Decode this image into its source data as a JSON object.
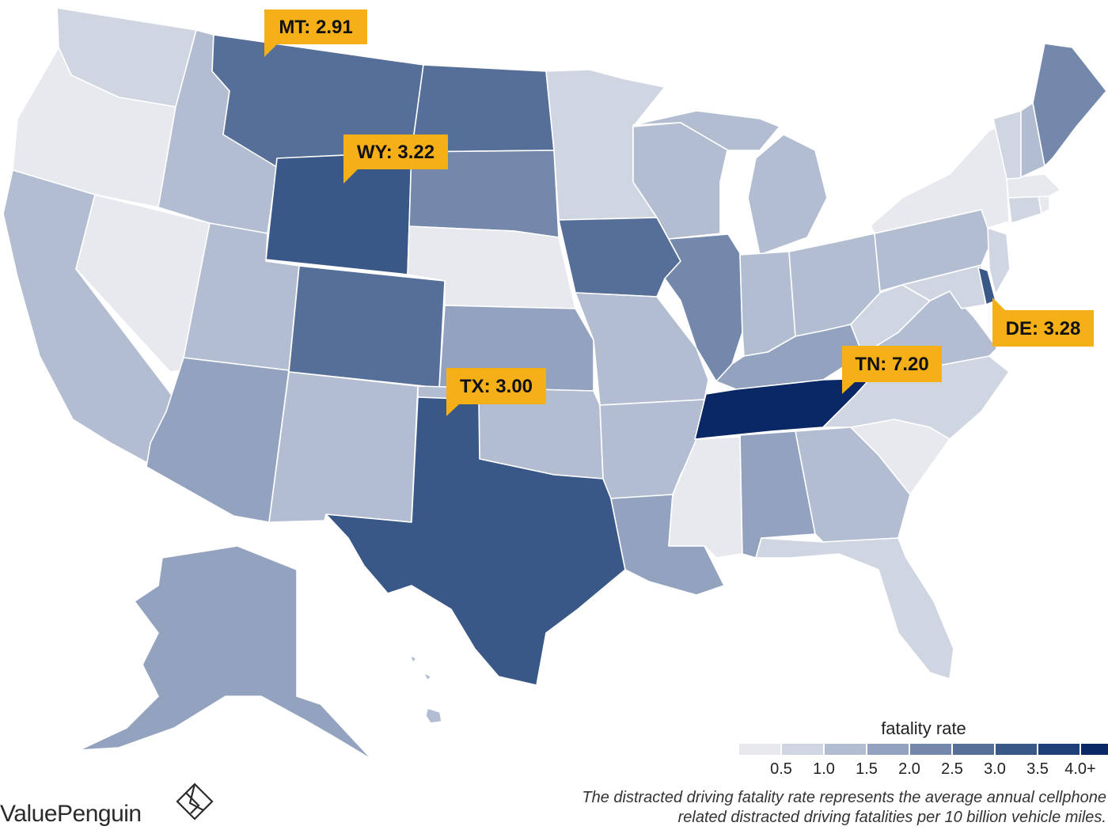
{
  "map_data": {
    "type": "choropleth",
    "region": "United States",
    "metric_label": "fatality rate",
    "legend": {
      "title": "fatality rate",
      "ticks": [
        "0.5",
        "1.0",
        "1.5",
        "2.0",
        "2.5",
        "3.0",
        "3.5",
        "4.0+"
      ],
      "colors": [
        "#e7e9ef",
        "#cfd6e2",
        "#b2bdd1",
        "#93a2bf",
        "#7488ab",
        "#566f98",
        "#3a5887",
        "#1e3f78",
        "#0a2766"
      ]
    },
    "callouts": [
      {
        "state": "MT",
        "label": "MT: 2.91",
        "value": 2.91
      },
      {
        "state": "WY",
        "label": "WY: 3.22",
        "value": 3.22
      },
      {
        "state": "TX",
        "label": "TX: 3.00",
        "value": 3.0
      },
      {
        "state": "TN",
        "label": "TN: 7.20",
        "value": 7.2
      },
      {
        "state": "DE",
        "label": "DE: 3.28",
        "value": 3.28
      }
    ],
    "state_color_bins": {
      "WA": 1,
      "OR": 0,
      "CA": 2,
      "NV": 0,
      "ID": 2,
      "MT": 5,
      "WY": 6,
      "UT": 2,
      "AZ": 3,
      "CO": 5,
      "NM": 2,
      "ND": 5,
      "SD": 4,
      "NE": 0,
      "KS": 3,
      "OK": 2,
      "TX": 6,
      "MN": 1,
      "IA": 5,
      "MO": 2,
      "AR": 2,
      "LA": 3,
      "WI": 2,
      "IL": 4,
      "MS": 0,
      "MI": 2,
      "IN": 2,
      "KY": 3,
      "TN": 8,
      "AL": 3,
      "OH": 2,
      "WV": 1,
      "GA": 2,
      "FL": 1,
      "SC": 0,
      "NC": 1,
      "VA": 2,
      "PA": 2,
      "NY": 0,
      "ME": 4,
      "NH": 2,
      "VT": 1,
      "MA": 0,
      "CT": 1,
      "RI": 0,
      "NJ": 1,
      "DE": 6,
      "MD": 1,
      "AK": 3,
      "HI": 2
    }
  },
  "brand": {
    "name": "ValuePenguin"
  },
  "footnote": {
    "line1": "The distracted driving fatality rate represents the average annual cellphone",
    "line2": "related distracted driving fatalities per 10 billion vehicle miles."
  }
}
